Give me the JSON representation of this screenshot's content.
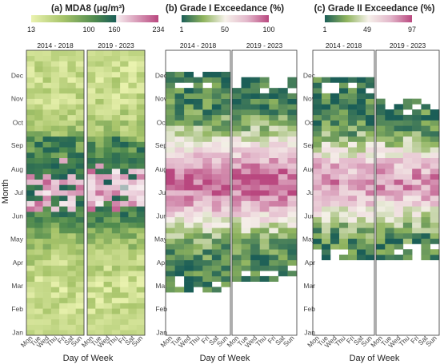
{
  "chart_data": [
    {
      "type": "heatmap",
      "title": "(a) MDA8 (μg/m³)",
      "colorbar": {
        "min": 13,
        "max": 234,
        "ticks": [
          "13",
          "100",
          "160",
          "234"
        ],
        "diverge_at": 160
      },
      "facets": [
        "2014 - 2018",
        "2019 - 2023"
      ],
      "ylabel": "Month",
      "xlabel": "Day of Week",
      "pattern": "mdaMap"
    },
    {
      "type": "heatmap",
      "title": "(b) Grade I Exceedance (%)",
      "colorbar": {
        "min": 1,
        "max": 100,
        "ticks": [
          "1",
          "50",
          "100"
        ],
        "diverge_at": 50
      },
      "facets": [
        "2014 - 2018",
        "2019 - 2023"
      ],
      "xlabel": "Day of Week",
      "pattern": "g1Map",
      "active_weeks": {
        "2014 - 2018": [
          8,
          48
        ],
        "2019 - 2023": [
          10,
          47
        ]
      }
    },
    {
      "type": "heatmap",
      "title": "(c) Grade II Exceedance (%)",
      "colorbar": {
        "min": 1,
        "max": 97,
        "ticks": [
          "1",
          "49",
          "97"
        ],
        "diverge_at": 49
      },
      "facets": [
        "2014 - 2018",
        "2019 - 2023"
      ],
      "xlabel": "Day of Week",
      "pattern": "g2Map",
      "active_weeks": {
        "2014 - 2018": [
          14,
          47
        ],
        "2019 - 2023": [
          14,
          43
        ]
      }
    }
  ],
  "y_axis": {
    "label": "Month",
    "ticks": [
      "Jan",
      "Feb",
      "Mar",
      "Apr",
      "May",
      "Jun",
      "Jul",
      "Aug",
      "Sep",
      "Oct",
      "Nov",
      "Dec"
    ]
  },
  "x_axis": {
    "label": "Day of Week",
    "ticks": [
      "Mon",
      "Tue",
      "Wed",
      "Thu",
      "Fri",
      "Sat",
      "Sun"
    ]
  },
  "colors": {
    "low": "#1b5e57",
    "mid": "#f6f1ea",
    "high": "#b9477f",
    "yellow_green": "#e8eea8",
    "green": "#7fa94e",
    "panel_border": "#333333",
    "missing": "#ffffff"
  }
}
